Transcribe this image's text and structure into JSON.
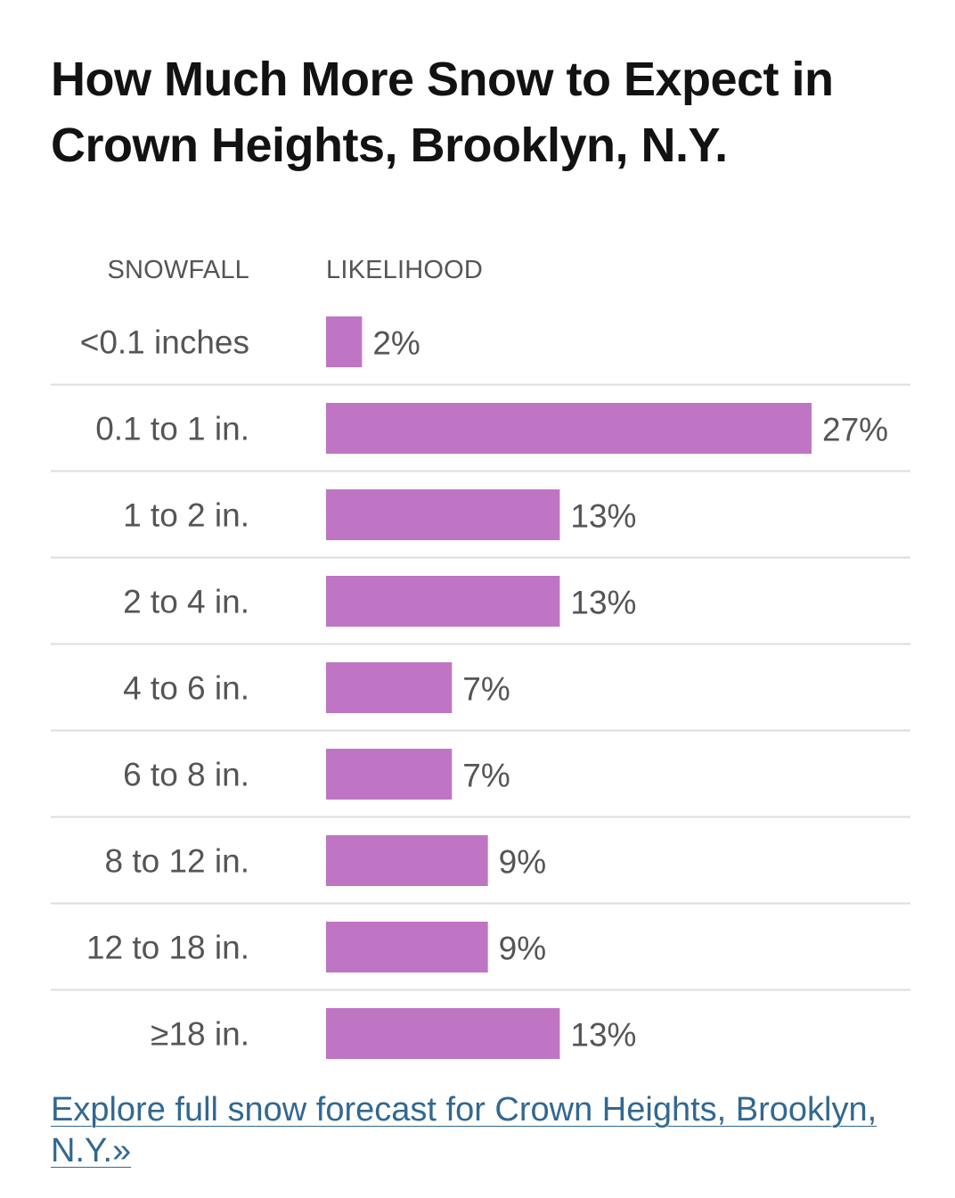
{
  "chart_data": {
    "type": "bar",
    "orientation": "horizontal",
    "title": "How Much More Snow to Expect in Crown Heights, Brooklyn, N.Y.",
    "category_header": "SNOWFALL",
    "value_header": "LIKELIHOOD",
    "categories": [
      "<0.1 inches",
      "0.1 to 1 in.",
      "1 to 2 in.",
      "2 to 4 in.",
      "4 to 6 in.",
      "6 to 8 in.",
      "8 to 12 in.",
      "12 to 18 in.",
      "≥18 in."
    ],
    "values": [
      2,
      27,
      13,
      13,
      7,
      7,
      9,
      9,
      13
    ],
    "value_labels": [
      "2%",
      "27%",
      "13%",
      "13%",
      "7%",
      "7%",
      "9%",
      "9%",
      "13%"
    ],
    "unit": "%",
    "xlim": [
      0,
      27
    ],
    "bar_color": "#bf75c3",
    "grid": false
  },
  "link": {
    "text": "Explore full snow forecast for Crown Heights, Brooklyn, N.Y.»",
    "color": "#326891"
  }
}
